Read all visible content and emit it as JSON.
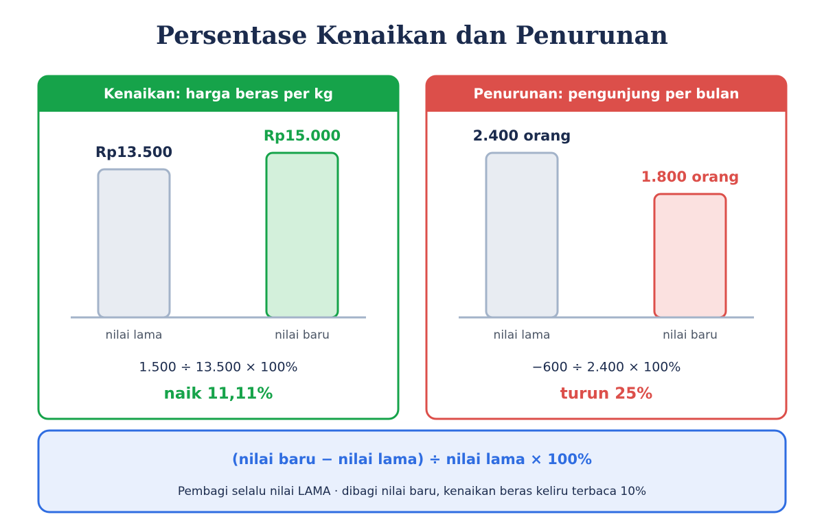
{
  "title": "Persentase Kenaikan dan Penurunan",
  "chart_data": [
    {
      "type": "bar",
      "title": "Kenaikan: harga beras per kg",
      "categories": [
        "nilai lama",
        "nilai baru"
      ],
      "values": [
        13500,
        15000
      ],
      "value_labels": [
        "Rp13.500",
        "Rp15.000"
      ],
      "colors": [
        "#a3b3c9",
        "#16a34a"
      ],
      "fills": [
        "#e8ecf2",
        "#d3f0db"
      ],
      "accent": "#16a34a",
      "ylim": [
        0,
        15000
      ],
      "formula": "1.500 ÷ 13.500 × 100%",
      "result": "naik 11,11%"
    },
    {
      "type": "bar",
      "title": "Penurunan: pengunjung per bulan",
      "categories": [
        "nilai lama",
        "nilai baru"
      ],
      "values": [
        2400,
        1800
      ],
      "value_labels": [
        "2.400 orang",
        "1.800 orang"
      ],
      "colors": [
        "#a3b3c9",
        "#dc4f4a"
      ],
      "fills": [
        "#e8ecf2",
        "#fbe1e0"
      ],
      "accent": "#dc4f4a",
      "ylim": [
        0,
        2400
      ],
      "formula": "−600 ÷ 2.400 × 100%",
      "result": "turun 25%"
    }
  ],
  "summary": {
    "formula": "(nilai baru − nilai lama) ÷ nilai lama × 100%",
    "note": "Pembagi selalu nilai LAMA · dibagi nilai baru, kenaikan beras keliru terbaca 10%"
  }
}
